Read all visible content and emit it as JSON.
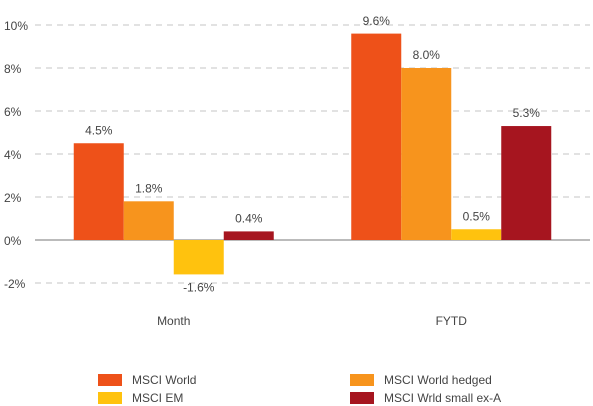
{
  "chart_data": {
    "type": "bar",
    "categories": [
      "Month",
      "FYTD"
    ],
    "series": [
      {
        "name": "MSCI World",
        "color": "#ee5119",
        "values": [
          4.5,
          9.6
        ],
        "value_labels": [
          "4.5%",
          "9.6%"
        ]
      },
      {
        "name": "MSCI World hedged",
        "color": "#f7941d",
        "values": [
          1.8,
          8.0
        ],
        "value_labels": [
          "1.8%",
          "8.0%"
        ]
      },
      {
        "name": "MSCI EM",
        "color": "#ffc20e",
        "values": [
          -1.6,
          0.5
        ],
        "value_labels": [
          "-1.6%",
          "0.5%"
        ]
      },
      {
        "name": "MSCI Wrld small ex-A",
        "color": "#a6151f",
        "values": [
          0.4,
          5.3
        ],
        "value_labels": [
          "0.4%",
          "5.3%"
        ]
      }
    ],
    "ylim": [
      -2,
      10
    ],
    "yticks": [
      {
        "value": -2,
        "label": "-2%"
      },
      {
        "value": 0,
        "label": "0%"
      },
      {
        "value": 2,
        "label": "2%"
      },
      {
        "value": 4,
        "label": "4%"
      },
      {
        "value": 6,
        "label": "6%"
      },
      {
        "value": 8,
        "label": "8%"
      },
      {
        "value": 10,
        "label": "10%"
      }
    ],
    "grid": true,
    "legend": "bottom"
  }
}
